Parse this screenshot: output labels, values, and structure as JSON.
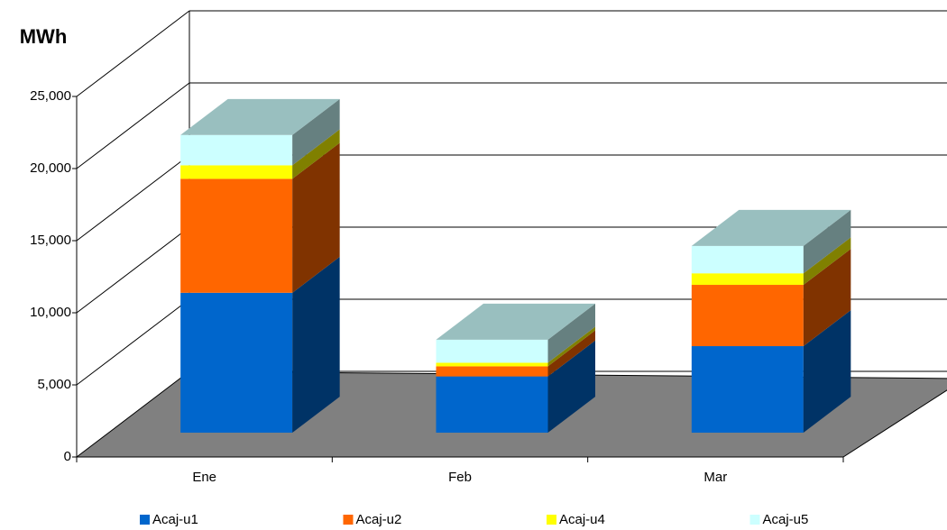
{
  "chart_data": {
    "type": "bar3d-stacked",
    "y_label": "MWh",
    "categories": [
      "Ene",
      "Feb",
      "Mar"
    ],
    "series": [
      {
        "name": "Acaj-u1",
        "color": "#0066cc",
        "values": [
          9700,
          3900,
          6000
        ]
      },
      {
        "name": "Acaj-u2",
        "color": "#ff6600",
        "values": [
          7900,
          700,
          4250
        ]
      },
      {
        "name": "Acaj-u4",
        "color": "#ffff00",
        "values": [
          940,
          250,
          800
        ]
      },
      {
        "name": "Acaj-u5",
        "color": "#ccffff",
        "values": [
          2100,
          1600,
          1900
        ]
      }
    ],
    "ylim": [
      0,
      25000
    ],
    "yticks": [
      0,
      {
        "value": 5000,
        "label": "5,000"
      },
      {
        "value": 10000,
        "label": "10,000"
      },
      {
        "value": 15000,
        "label": "15,000"
      },
      {
        "value": 20000,
        "label": "20,000"
      },
      {
        "value": 25000,
        "label": "25,000"
      }
    ],
    "grid": true,
    "legend": "bottom",
    "floor_color": "#808080"
  }
}
